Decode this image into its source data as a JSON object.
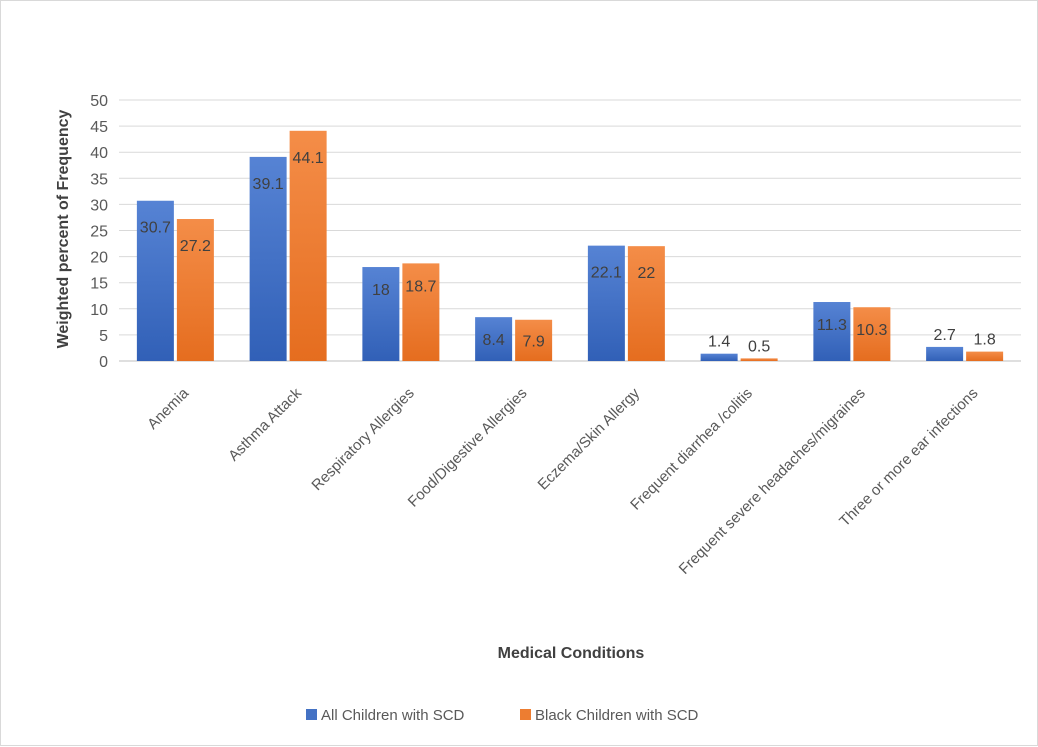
{
  "chart_data": {
    "type": "bar",
    "title": "",
    "xlabel": "Medical Conditions",
    "ylabel": "Weighted percent of Frequency",
    "ylim": [
      0,
      50
    ],
    "ytick_step": 5,
    "grid": true,
    "legend_position": "bottom",
    "categories": [
      "Anemia",
      "Asthma Attack",
      "Respiratory Allergies",
      "Food/Digestive Allergies",
      "Eczema/Skin Allergy",
      "Frequent diarrhea /colitis",
      "Frequent severe headaches/migraines",
      "Three or more ear infections"
    ],
    "series": [
      {
        "name": "All Children with SCD",
        "color": "#4472C4",
        "values": [
          30.7,
          39.1,
          18,
          8.4,
          22.1,
          1.4,
          11.3,
          2.7
        ]
      },
      {
        "name": "Black Children with SCD",
        "color": "#ED7D31",
        "values": [
          27.2,
          44.1,
          18.7,
          7.9,
          22,
          0.5,
          10.3,
          1.8
        ]
      }
    ]
  }
}
